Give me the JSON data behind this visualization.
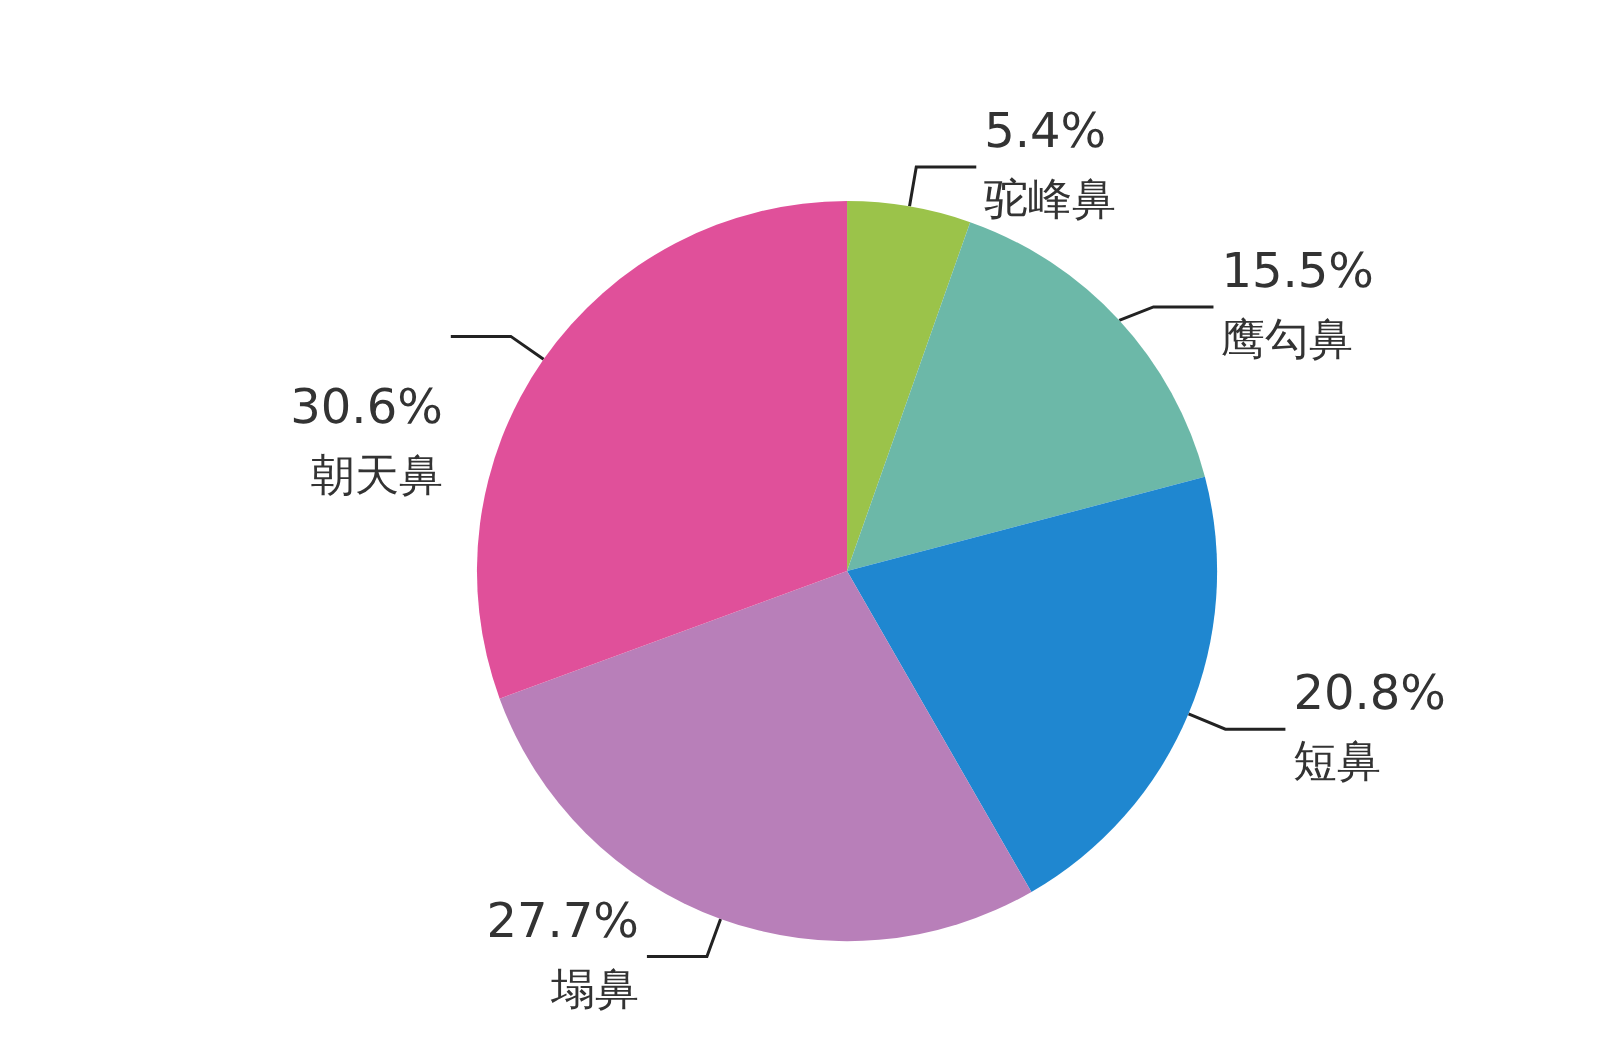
{
  "chart_data": {
    "type": "pie",
    "categories": [
      "驼峰鼻",
      "鹰勾鼻",
      "短鼻",
      "塌鼻",
      "朝天鼻"
    ],
    "values": [
      5.4,
      15.5,
      20.8,
      27.7,
      30.6
    ],
    "value_labels": [
      "5.4%",
      "15.5%",
      "20.8%",
      "27.7%",
      "30.6%"
    ],
    "colors": [
      "#9bc34a",
      "#6cb8a8",
      "#1f87d0",
      "#b87fb9",
      "#e0509a"
    ],
    "legend": false
  }
}
